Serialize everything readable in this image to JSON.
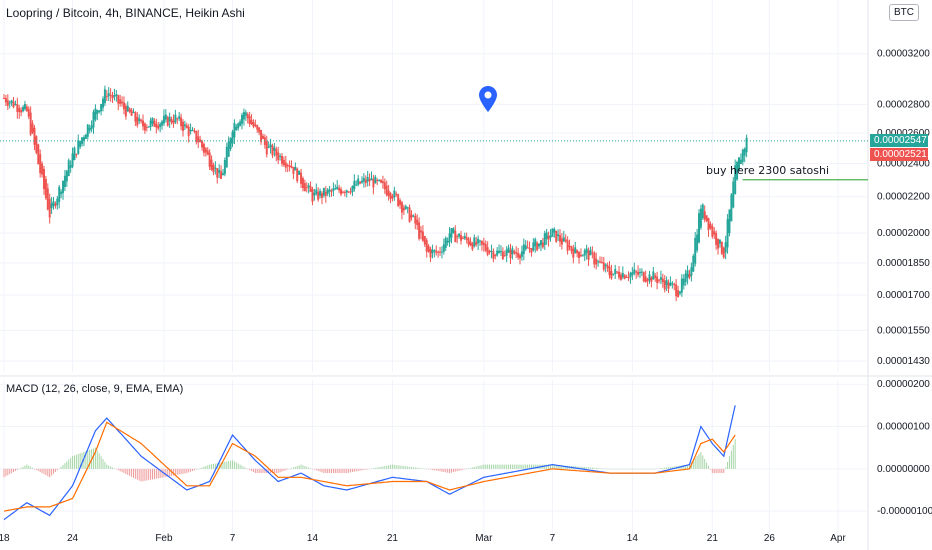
{
  "header": {
    "title": "Loopring / Bitcoin, 4h, BINANCE, Heikin Ashi",
    "currency_button": "BTC",
    "macd_title": "MACD (12, 26, close, 9, EMA, EMA)"
  },
  "price_tags": {
    "last": "0.00002547",
    "prev": "0.00002521",
    "last_color": "#26a69a",
    "prev_color": "#ef5350"
  },
  "annotation": {
    "text": "buy  here 2300 satoshi",
    "price": 2.3e-05
  },
  "colors": {
    "up": "#26a69a",
    "down": "#ef5350",
    "macd_line": "#2962ff",
    "signal_line": "#ff6d00",
    "annotation_line": "#4caf50",
    "marker": "#2962ff"
  },
  "chart_data": [
    {
      "type": "candlestick",
      "title": "Loopring / Bitcoin, 4h, BINANCE, Heikin Ashi",
      "y_scale": "log",
      "y_ticks": [
        "0.00003200",
        "0.00002800",
        "0.00002600",
        "0.00002400",
        "0.00002200",
        "0.00002000",
        "0.00001850",
        "0.00001700",
        "0.00001550",
        "0.00001430"
      ],
      "y_tick_values": [
        3.2e-05,
        2.8e-05,
        2.6e-05,
        2.4e-05,
        2.2e-05,
        2e-05,
        1.85e-05,
        1.7e-05,
        1.55e-05,
        1.43e-05
      ],
      "x_ticks": [
        "18",
        "24",
        "Feb",
        "7",
        "14",
        "21",
        "Mar",
        "7",
        "14",
        "21",
        "26",
        "Apr"
      ],
      "x_tick_dates": [
        "2021-01-18",
        "2021-01-24",
        "2021-02-01",
        "2021-02-07",
        "2021-02-14",
        "2021-02-21",
        "2021-03-01",
        "2021-03-07",
        "2021-03-14",
        "2021-03-21",
        "2021-03-26",
        "2021-04-01"
      ],
      "series": [
        {
          "name": "",
          "x": [
            "2021-01-18",
            "2021-01-20",
            "2021-01-21",
            "2021-01-22",
            "2021-01-24",
            "2021-01-26",
            "2021-01-27",
            "2021-01-30",
            "2021-02-02",
            "2021-02-04",
            "2021-02-06",
            "2021-02-07",
            "2021-02-08",
            "2021-02-10",
            "2021-02-12",
            "2021-02-14",
            "2021-02-17",
            "2021-02-19",
            "2021-02-21",
            "2021-02-23",
            "2021-02-24",
            "2021-02-25",
            "2021-02-26",
            "2021-02-28",
            "2021-03-02",
            "2021-03-04",
            "2021-03-06",
            "2021-03-07",
            "2021-03-09",
            "2021-03-10",
            "2021-03-12",
            "2021-03-14",
            "2021-03-16",
            "2021-03-18",
            "2021-03-19",
            "2021-03-20",
            "2021-03-21",
            "2021-03-22",
            "2021-03-23",
            "2021-03-24"
          ],
          "close": [
            2.85e-05,
            2.75e-05,
            2.4e-05,
            2.1e-05,
            2.45e-05,
            2.75e-05,
            2.9e-05,
            2.65e-05,
            2.7e-05,
            2.55e-05,
            2.3e-05,
            2.65e-05,
            2.75e-05,
            2.5e-05,
            2.4e-05,
            2.2e-05,
            2.25e-05,
            2.3e-05,
            2.22e-05,
            2.05e-05,
            1.9e-05,
            1.9e-05,
            2e-05,
            1.95e-05,
            1.9e-05,
            1.9e-05,
            1.95e-05,
            2e-05,
            1.9e-05,
            1.9e-05,
            1.8e-05,
            1.8e-05,
            1.78e-05,
            1.72e-05,
            1.8e-05,
            2.15e-05,
            2e-05,
            1.9e-05,
            2.35e-05,
            2.55e-05
          ]
        }
      ]
    },
    {
      "type": "line",
      "title": "MACD (12, 26, close, 9, EMA, EMA)",
      "y_ticks": [
        "0.00000200",
        "0.00000100",
        "0.00000000",
        "-0.00000100"
      ],
      "y_tick_values": [
        2e-06,
        1e-06,
        0,
        -1e-06
      ],
      "x": [
        "2021-01-18",
        "2021-01-20",
        "2021-01-22",
        "2021-01-24",
        "2021-01-26",
        "2021-01-27",
        "2021-01-30",
        "2021-02-03",
        "2021-02-05",
        "2021-02-07",
        "2021-02-09",
        "2021-02-11",
        "2021-02-13",
        "2021-02-15",
        "2021-02-17",
        "2021-02-21",
        "2021-02-24",
        "2021-02-26",
        "2021-03-01",
        "2021-03-07",
        "2021-03-12",
        "2021-03-16",
        "2021-03-19",
        "2021-03-20",
        "2021-03-21",
        "2021-03-22",
        "2021-03-23"
      ],
      "series": [
        {
          "name": "",
          "values": [
            -1.2e-06,
            -8e-07,
            -1.1e-06,
            -4e-07,
            9e-07,
            1.2e-06,
            3e-07,
            -5e-07,
            -3e-07,
            8e-07,
            2e-07,
            -3e-07,
            -1e-07,
            -4e-07,
            -5e-07,
            -2e-07,
            -3e-07,
            -6e-07,
            -2e-07,
            1e-07,
            -1e-07,
            -1e-07,
            1e-07,
            1e-06,
            6e-07,
            3e-07,
            1.5e-06
          ]
        },
        {
          "name": "",
          "values": [
            -1e-06,
            -9e-07,
            -9e-07,
            -7e-07,
            4e-07,
            1.1e-06,
            6e-07,
            -4e-07,
            -4e-07,
            6e-07,
            3e-07,
            -2e-07,
            -2e-07,
            -3e-07,
            -4e-07,
            -3e-07,
            -3e-07,
            -5e-07,
            -3e-07,
            0,
            -1e-07,
            -1e-07,
            0,
            6e-07,
            7e-07,
            4e-07,
            8e-07
          ]
        }
      ]
    }
  ]
}
